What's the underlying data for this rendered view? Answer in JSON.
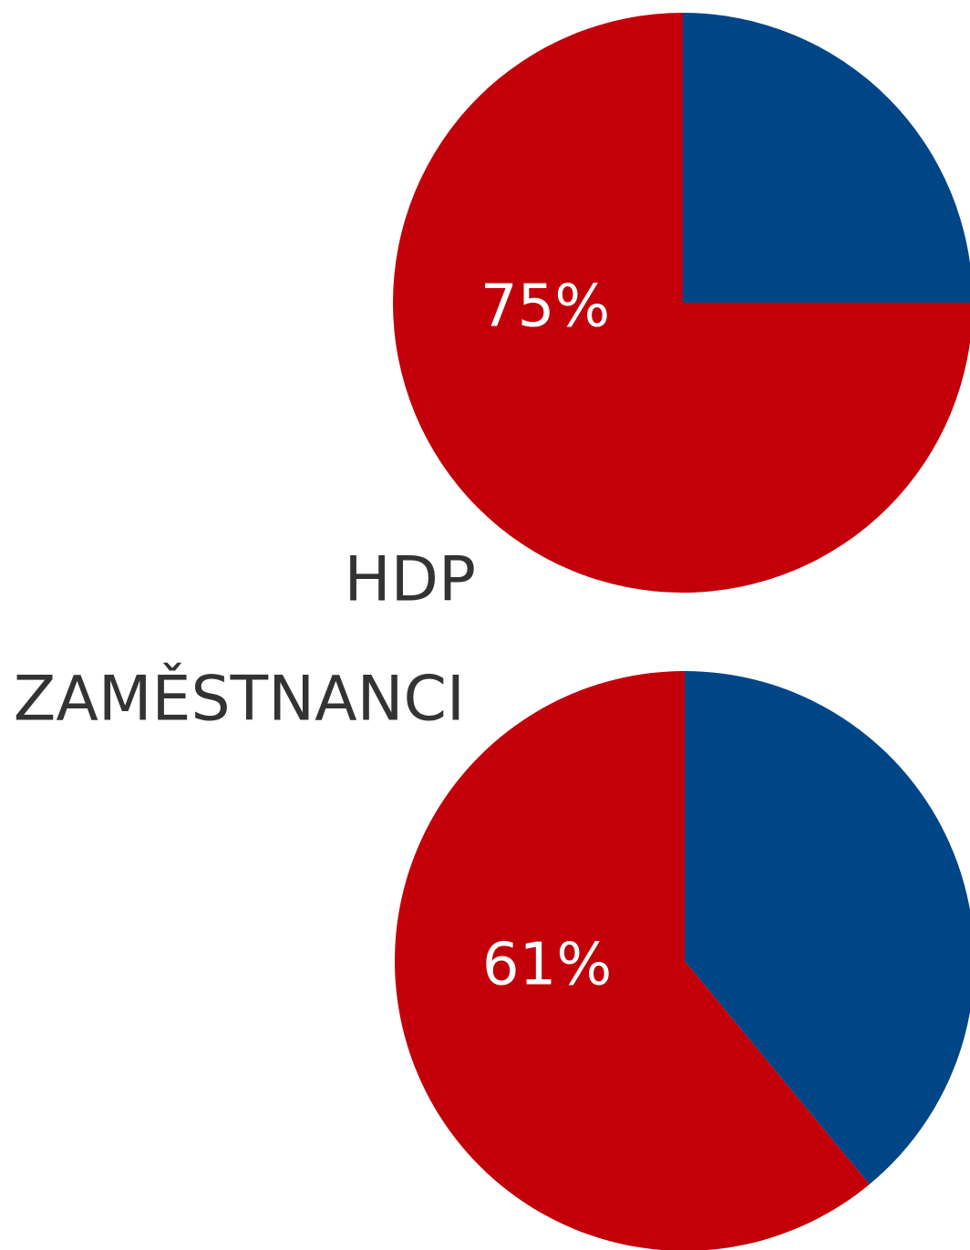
{
  "chart_data": [
    {
      "type": "pie",
      "title": "HDP",
      "values": [
        25,
        75
      ],
      "value_labels": [
        null,
        "75%"
      ],
      "colors": [
        "#004687",
        "#c3000a"
      ]
    },
    {
      "type": "pie",
      "title": "ZAMĚSTNANCI",
      "values": [
        39,
        61
      ],
      "value_labels": [
        null,
        "61%"
      ],
      "colors": [
        "#004687",
        "#c3000a"
      ]
    }
  ]
}
